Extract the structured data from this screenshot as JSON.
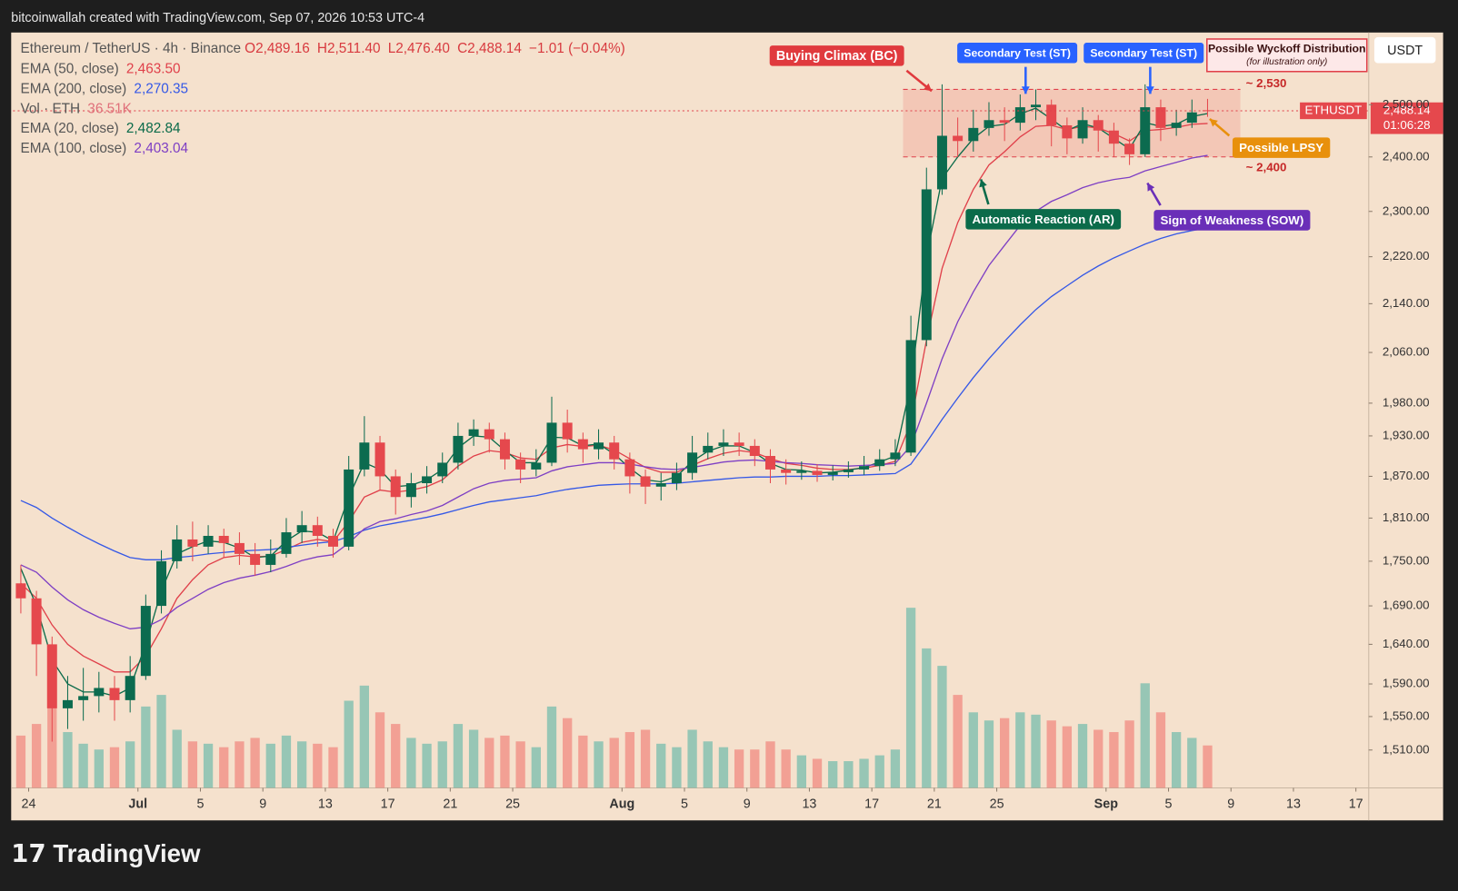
{
  "header": {
    "credit": "bitcoinwallah created with TradingView.com, Sep 07, 2026 10:53 UTC-4",
    "logo": "TradingView",
    "currency": "USDT"
  },
  "chart_data": {
    "type": "candlestick",
    "title": "Ethereum / TetherUS · 4h · Binance",
    "ohlc_labels": [
      "O2,489.16",
      "H2,511.40",
      "L2,476.40",
      "C2,488.14"
    ],
    "change_label": "−1.01 (−0.04%)",
    "x": [
      "2026-06-23",
      "2026-06-24",
      "2026-06-25",
      "2026-06-26",
      "2026-06-27",
      "2026-06-28",
      "2026-06-29",
      "2026-06-30",
      "2026-07-01",
      "2026-07-02",
      "2026-07-03",
      "2026-07-04",
      "2026-07-05",
      "2026-07-06",
      "2026-07-07",
      "2026-07-08",
      "2026-07-09",
      "2026-07-10",
      "2026-07-11",
      "2026-07-12",
      "2026-07-13",
      "2026-07-14",
      "2026-07-15",
      "2026-07-16",
      "2026-07-17",
      "2026-07-18",
      "2026-07-19",
      "2026-07-20",
      "2026-07-21",
      "2026-07-22",
      "2026-07-23",
      "2026-07-24",
      "2026-07-25",
      "2026-07-26",
      "2026-07-27",
      "2026-07-28",
      "2026-07-29",
      "2026-07-30",
      "2026-07-31",
      "2026-08-01",
      "2026-08-02",
      "2026-08-03",
      "2026-08-04",
      "2026-08-05",
      "2026-08-06",
      "2026-08-07",
      "2026-08-08",
      "2026-08-09",
      "2026-08-10",
      "2026-08-11",
      "2026-08-12",
      "2026-08-13",
      "2026-08-14",
      "2026-08-15",
      "2026-08-16",
      "2026-08-17",
      "2026-08-18",
      "2026-08-19",
      "2026-08-20",
      "2026-08-21",
      "2026-08-22",
      "2026-08-23",
      "2026-08-24",
      "2026-08-25",
      "2026-08-26",
      "2026-08-27",
      "2026-08-28",
      "2026-08-29",
      "2026-08-30",
      "2026-08-31",
      "2026-09-01",
      "2026-09-02",
      "2026-09-03",
      "2026-09-04",
      "2026-09-05",
      "2026-09-06",
      "2026-09-07"
    ],
    "open": [
      1720,
      1700,
      1640,
      1560,
      1570,
      1575,
      1585,
      1570,
      1600,
      1690,
      1750,
      1780,
      1770,
      1785,
      1775,
      1760,
      1745,
      1760,
      1790,
      1800,
      1785,
      1770,
      1880,
      1920,
      1870,
      1840,
      1860,
      1870,
      1890,
      1930,
      1940,
      1925,
      1895,
      1880,
      1890,
      1950,
      1925,
      1910,
      1920,
      1895,
      1870,
      1855,
      1860,
      1875,
      1905,
      1915,
      1920,
      1915,
      1900,
      1880,
      1875,
      1878,
      1872,
      1876,
      1880,
      1885,
      1895,
      1905,
      2080,
      2340,
      2440,
      2430,
      2455,
      2470,
      2465,
      2495,
      2500,
      2460,
      2435,
      2470,
      2450,
      2425,
      2405,
      2495,
      2455,
      2465,
      2489.16
    ],
    "high": [
      1745,
      1710,
      1650,
      1600,
      1610,
      1605,
      1600,
      1625,
      1705,
      1765,
      1800,
      1805,
      1800,
      1795,
      1790,
      1775,
      1780,
      1810,
      1820,
      1812,
      1795,
      1900,
      1960,
      1930,
      1880,
      1875,
      1885,
      1905,
      1950,
      1955,
      1950,
      1935,
      1905,
      1910,
      1990,
      1970,
      1935,
      1940,
      1930,
      1905,
      1880,
      1875,
      1890,
      1930,
      1935,
      1940,
      1935,
      1925,
      1910,
      1895,
      1892,
      1888,
      1886,
      1892,
      1900,
      1910,
      1925,
      2120,
      2380,
      2540,
      2475,
      2490,
      2505,
      2495,
      2520,
      2530,
      2510,
      2475,
      2495,
      2480,
      2465,
      2435,
      2540,
      2510,
      2490,
      2510,
      2511.4
    ],
    "low": [
      1680,
      1600,
      1520,
      1535,
      1545,
      1555,
      1545,
      1555,
      1595,
      1680,
      1740,
      1750,
      1760,
      1755,
      1745,
      1730,
      1735,
      1755,
      1775,
      1770,
      1755,
      1765,
      1870,
      1850,
      1815,
      1825,
      1845,
      1860,
      1880,
      1915,
      1905,
      1880,
      1860,
      1870,
      1885,
      1905,
      1890,
      1895,
      1880,
      1845,
      1830,
      1835,
      1850,
      1865,
      1895,
      1900,
      1900,
      1885,
      1860,
      1858,
      1865,
      1862,
      1864,
      1868,
      1872,
      1878,
      1885,
      1900,
      2070,
      2330,
      2400,
      2410,
      2440,
      2430,
      2450,
      2470,
      2420,
      2405,
      2425,
      2410,
      2400,
      2385,
      2400,
      2430,
      2440,
      2455,
      2476.4
    ],
    "close": [
      1700,
      1640,
      1560,
      1570,
      1575,
      1585,
      1570,
      1600,
      1690,
      1750,
      1780,
      1770,
      1785,
      1775,
      1760,
      1745,
      1760,
      1790,
      1800,
      1785,
      1770,
      1880,
      1920,
      1870,
      1840,
      1860,
      1870,
      1890,
      1930,
      1940,
      1925,
      1895,
      1880,
      1890,
      1950,
      1925,
      1910,
      1920,
      1895,
      1870,
      1855,
      1860,
      1875,
      1905,
      1915,
      1920,
      1915,
      1900,
      1880,
      1875,
      1878,
      1872,
      1876,
      1880,
      1885,
      1895,
      1905,
      2080,
      2340,
      2440,
      2430,
      2455,
      2470,
      2465,
      2495,
      2500,
      2460,
      2435,
      2470,
      2450,
      2425,
      2405,
      2495,
      2455,
      2465,
      2485,
      2488.14
    ],
    "up_color": "#0c6b4f",
    "down_color": "#e5484d",
    "volume": {
      "name": "Vol · ETH",
      "last_label": "36.51K",
      "axis": "y2",
      "up_color": "rgba(38,166,154,0.45)",
      "down_color": "rgba(239,83,80,0.45)",
      "values": [
        45,
        55,
        75,
        48,
        38,
        33,
        35,
        40,
        70,
        80,
        50,
        40,
        38,
        35,
        40,
        43,
        38,
        45,
        40,
        38,
        35,
        75,
        88,
        65,
        55,
        43,
        38,
        40,
        55,
        50,
        43,
        45,
        40,
        35,
        70,
        60,
        45,
        40,
        43,
        48,
        50,
        38,
        35,
        50,
        40,
        35,
        33,
        33,
        40,
        33,
        28,
        25,
        23,
        23,
        25,
        28,
        33,
        155,
        120,
        105,
        80,
        65,
        58,
        60,
        65,
        63,
        58,
        53,
        55,
        50,
        48,
        58,
        90,
        65,
        48,
        43,
        36.51
      ]
    },
    "series": [
      {
        "name": "EMA (50, close)",
        "color": "#e0404a",
        "last_label": "2,463.50",
        "values": [
          1720,
          1700,
          1665,
          1640,
          1625,
          1615,
          1605,
          1605,
          1625,
          1660,
          1700,
          1725,
          1745,
          1755,
          1758,
          1756,
          1757,
          1766,
          1776,
          1780,
          1777,
          1805,
          1840,
          1850,
          1847,
          1850,
          1855,
          1865,
          1885,
          1900,
          1908,
          1905,
          1897,
          1895,
          1912,
          1917,
          1914,
          1916,
          1909,
          1896,
          1883,
          1876,
          1876,
          1886,
          1896,
          1904,
          1908,
          1905,
          1896,
          1889,
          1886,
          1882,
          1880,
          1880,
          1882,
          1886,
          1892,
          1950,
          2080,
          2200,
          2280,
          2340,
          2385,
          2410,
          2438,
          2458,
          2460,
          2452,
          2458,
          2455,
          2444,
          2430,
          2450,
          2452,
          2456,
          2462,
          2463.5
        ]
      },
      {
        "name": "EMA (200, close)",
        "color": "#3558e6",
        "last_label": "2,270.35",
        "values": [
          1835,
          1825,
          1810,
          1797,
          1785,
          1774,
          1764,
          1755,
          1752,
          1752,
          1755,
          1757,
          1760,
          1762,
          1764,
          1765,
          1766,
          1769,
          1772,
          1775,
          1777,
          1784,
          1793,
          1799,
          1803,
          1807,
          1811,
          1816,
          1822,
          1828,
          1833,
          1836,
          1839,
          1842,
          1847,
          1851,
          1854,
          1857,
          1858,
          1859,
          1859,
          1859,
          1860,
          1862,
          1864,
          1866,
          1868,
          1869,
          1869,
          1870,
          1870,
          1870,
          1871,
          1871,
          1872,
          1873,
          1874,
          1888,
          1920,
          1955,
          1988,
          2020,
          2050,
          2078,
          2105,
          2130,
          2152,
          2170,
          2188,
          2204,
          2218,
          2230,
          2242,
          2252,
          2260,
          2266,
          2270.35
        ]
      },
      {
        "name": "EMA (20, close)",
        "color": "#0b6b4a",
        "last_label": "2,482.84",
        "values": [
          1740,
          1690,
          1620,
          1590,
          1580,
          1580,
          1575,
          1585,
          1640,
          1710,
          1760,
          1770,
          1778,
          1776,
          1768,
          1755,
          1757,
          1778,
          1792,
          1790,
          1778,
          1840,
          1890,
          1880,
          1855,
          1857,
          1865,
          1880,
          1912,
          1930,
          1928,
          1908,
          1890,
          1890,
          1928,
          1927,
          1915,
          1918,
          1903,
          1882,
          1865,
          1862,
          1870,
          1892,
          1907,
          1915,
          1915,
          1905,
          1889,
          1880,
          1879,
          1875,
          1876,
          1879,
          1883,
          1891,
          1900,
          2010,
          2220,
          2360,
          2400,
          2435,
          2458,
          2462,
          2482,
          2493,
          2472,
          2450,
          2463,
          2455,
          2435,
          2415,
          2465,
          2458,
          2462,
          2477,
          2482.84
        ]
      },
      {
        "name": "EMA (100, close)",
        "color": "#7e3fc4",
        "last_label": "2,403.04",
        "values": [
          1745,
          1735,
          1715,
          1698,
          1685,
          1675,
          1667,
          1660,
          1662,
          1672,
          1688,
          1700,
          1712,
          1721,
          1727,
          1731,
          1736,
          1743,
          1751,
          1756,
          1759,
          1775,
          1795,
          1805,
          1809,
          1815,
          1820,
          1828,
          1840,
          1852,
          1860,
          1864,
          1866,
          1868,
          1878,
          1884,
          1887,
          1890,
          1890,
          1888,
          1884,
          1881,
          1880,
          1883,
          1887,
          1891,
          1893,
          1894,
          1892,
          1890,
          1889,
          1887,
          1886,
          1885,
          1886,
          1887,
          1889,
          1915,
          1980,
          2050,
          2110,
          2160,
          2205,
          2240,
          2275,
          2300,
          2318,
          2330,
          2343,
          2352,
          2358,
          2362,
          2374,
          2382,
          2390,
          2398,
          2403.04
        ]
      }
    ],
    "xlim": [
      "2026-06-23",
      "2026-09-18"
    ],
    "xticks": [
      {
        "value": "2026-06-24",
        "label": "24"
      },
      {
        "value": "2026-07-01",
        "label": "Jul"
      },
      {
        "value": "2026-07-05",
        "label": "5"
      },
      {
        "value": "2026-07-09",
        "label": "9"
      },
      {
        "value": "2026-07-13",
        "label": "13"
      },
      {
        "value": "2026-07-17",
        "label": "17"
      },
      {
        "value": "2026-07-21",
        "label": "21"
      },
      {
        "value": "2026-07-25",
        "label": "25"
      },
      {
        "value": "2026-08-01",
        "label": "Aug"
      },
      {
        "value": "2026-08-05",
        "label": "5"
      },
      {
        "value": "2026-08-09",
        "label": "9"
      },
      {
        "value": "2026-08-13",
        "label": "13"
      },
      {
        "value": "2026-08-17",
        "label": "17"
      },
      {
        "value": "2026-08-21",
        "label": "21"
      },
      {
        "value": "2026-08-25",
        "label": "25"
      },
      {
        "value": "2026-09-01",
        "label": "Sep"
      },
      {
        "value": "2026-09-05",
        "label": "5"
      },
      {
        "value": "2026-09-09",
        "label": "9"
      },
      {
        "value": "2026-09-13",
        "label": "13"
      },
      {
        "value": "2026-09-17",
        "label": "17"
      }
    ],
    "ylim": [
      1466,
      2645
    ],
    "log_scale": true,
    "y2lim": [
      0,
      650
    ],
    "yticks": [
      {
        "value": 1510,
        "label": "1,510.00"
      },
      {
        "value": 1550,
        "label": "1,550.00"
      },
      {
        "value": 1590,
        "label": "1,590.00"
      },
      {
        "value": 1640,
        "label": "1,640.00"
      },
      {
        "value": 1690,
        "label": "1,690.00"
      },
      {
        "value": 1750,
        "label": "1,750.00"
      },
      {
        "value": 1810,
        "label": "1,810.00"
      },
      {
        "value": 1870,
        "label": "1,870.00"
      },
      {
        "value": 1930,
        "label": "1,930.00"
      },
      {
        "value": 1980,
        "label": "1,980.00"
      },
      {
        "value": 2060,
        "label": "2,060.00"
      },
      {
        "value": 2140,
        "label": "2,140.00"
      },
      {
        "value": 2220,
        "label": "2,220.00"
      },
      {
        "value": 2300,
        "label": "2,300.00"
      },
      {
        "value": 2400,
        "label": "2,400.00"
      },
      {
        "value": 2500,
        "label": "2,500.00"
      }
    ],
    "price_tag": {
      "symbol": "ETHUSDT",
      "value_label": "2,488.14",
      "countdown": "01:06:28"
    },
    "range": {
      "values": [
        2530,
        2400
      ],
      "labels": [
        "~ 2,530",
        "~ 2,400"
      ]
    },
    "annotations": [
      {
        "text": "Buying Climax (BC)",
        "color": "#e03a3e"
      },
      {
        "text": "Secondary Test (ST)",
        "color": "#2962ff"
      },
      {
        "text": "Secondary Test (ST)",
        "color": "#2962ff"
      },
      {
        "text": "Possible LPSY",
        "color": "#e8900c"
      },
      {
        "text": "Automatic Reaction (AR)",
        "color": "#0b6b4a"
      },
      {
        "text": "Sign of Weakness (SOW)",
        "color": "#6a2fb8"
      }
    ],
    "note": {
      "title": "Possible Wyckoff Distribution",
      "subtitle": "(for illustration only)"
    }
  }
}
